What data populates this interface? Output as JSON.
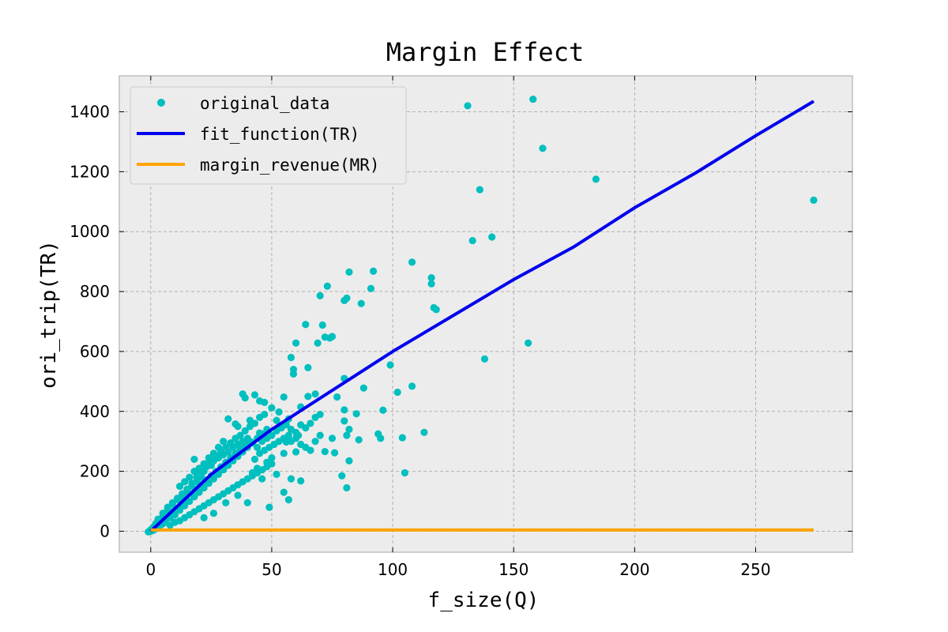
{
  "chart_data": {
    "type": "scatter",
    "title": "Margin Effect",
    "xlabel": "f_size(Q)",
    "ylabel": "ori_trip(TR)",
    "xlim": [
      -13,
      290
    ],
    "ylim": [
      -70,
      1520
    ],
    "xticks": [
      0,
      50,
      100,
      150,
      200,
      250
    ],
    "yticks": [
      0,
      200,
      400,
      600,
      800,
      1000,
      1200,
      1400
    ],
    "grid": true,
    "legend_position": "top-left",
    "colors": {
      "scatter": "#00bfbf",
      "fit": "#0000ee",
      "margin": "#ffa500",
      "plot_background": "#ececec",
      "frame": "#bfbfbf"
    },
    "series": [
      {
        "name": "original_data",
        "kind": "scatter",
        "points": [
          [
            131,
            1420
          ],
          [
            158,
            1442
          ],
          [
            162,
            1278
          ],
          [
            136,
            1140
          ],
          [
            184,
            1175
          ],
          [
            274,
            1105
          ],
          [
            133,
            970
          ],
          [
            141,
            982
          ],
          [
            108,
            898
          ],
          [
            116,
            846
          ],
          [
            116,
            826
          ],
          [
            117,
            746
          ],
          [
            118,
            740
          ],
          [
            156,
            628
          ],
          [
            138,
            575
          ],
          [
            92,
            868
          ],
          [
            91,
            810
          ],
          [
            82,
            865
          ],
          [
            80,
            770
          ],
          [
            81,
            778
          ],
          [
            87,
            760
          ],
          [
            73,
            818
          ],
          [
            70,
            786
          ],
          [
            74,
            645
          ],
          [
            75,
            650
          ],
          [
            72,
            648
          ],
          [
            71,
            688
          ],
          [
            64,
            690
          ],
          [
            69,
            628
          ],
          [
            60,
            628
          ],
          [
            65,
            546
          ],
          [
            58,
            580
          ],
          [
            59,
            540
          ],
          [
            59,
            525
          ],
          [
            99,
            555
          ],
          [
            80,
            510
          ],
          [
            77,
            448
          ],
          [
            88,
            478
          ],
          [
            96,
            404
          ],
          [
            102,
            464
          ],
          [
            108,
            484
          ],
          [
            94,
            325
          ],
          [
            95,
            310
          ],
          [
            104,
            312
          ],
          [
            113,
            330
          ],
          [
            105,
            195
          ],
          [
            85,
            392
          ],
          [
            82,
            340
          ],
          [
            81,
            320
          ],
          [
            86,
            305
          ],
          [
            76,
            262
          ],
          [
            72,
            266
          ],
          [
            75,
            310
          ],
          [
            79,
            185
          ],
          [
            81,
            145
          ],
          [
            82,
            235
          ],
          [
            80,
            368
          ],
          [
            80,
            405
          ],
          [
            65,
            450
          ],
          [
            68,
            458
          ],
          [
            62,
            415
          ],
          [
            55,
            448
          ],
          [
            53,
            398
          ],
          [
            50,
            412
          ],
          [
            45,
            435
          ],
          [
            43,
            455
          ],
          [
            47,
            430
          ],
          [
            38,
            458
          ],
          [
            39,
            445
          ],
          [
            32,
            375
          ],
          [
            35,
            358
          ],
          [
            41,
            370
          ],
          [
            36,
            350
          ],
          [
            45,
            328
          ],
          [
            52,
            370
          ],
          [
            57,
            375
          ],
          [
            58,
            340
          ],
          [
            56,
            298
          ],
          [
            61,
            320
          ],
          [
            60,
            265
          ],
          [
            55,
            260
          ],
          [
            50,
            245
          ],
          [
            48,
            230
          ],
          [
            44,
            210
          ],
          [
            42,
            195
          ],
          [
            46,
            175
          ],
          [
            52,
            190
          ],
          [
            58,
            175
          ],
          [
            62,
            168
          ],
          [
            55,
            130
          ],
          [
            57,
            105
          ],
          [
            49,
            80
          ],
          [
            40,
            95
          ],
          [
            36,
            120
          ],
          [
            31,
            95
          ],
          [
            26,
            60
          ],
          [
            22,
            45
          ],
          [
            18,
            240
          ],
          [
            20,
            210
          ],
          [
            25,
            220
          ],
          [
            28,
            280
          ],
          [
            30,
            300
          ],
          [
            26,
            260
          ],
          [
            24,
            230
          ],
          [
            22,
            200
          ],
          [
            21,
            180
          ],
          [
            19,
            165
          ],
          [
            17,
            150
          ],
          [
            15,
            140
          ],
          [
            13,
            125
          ],
          [
            11,
            110
          ],
          [
            9,
            95
          ],
          [
            7,
            80
          ],
          [
            5,
            60
          ],
          [
            3,
            40
          ],
          [
            2,
            25
          ],
          [
            1,
            12
          ],
          [
            0,
            5
          ],
          [
            0,
            0
          ],
          [
            -1,
            -2
          ],
          [
            1,
            3
          ],
          [
            2,
            8
          ],
          [
            4,
            20
          ],
          [
            6,
            30
          ],
          [
            8,
            45
          ],
          [
            10,
            55
          ],
          [
            12,
            70
          ],
          [
            14,
            85
          ],
          [
            16,
            100
          ],
          [
            18,
            115
          ],
          [
            20,
            130
          ],
          [
            22,
            145
          ],
          [
            24,
            160
          ],
          [
            26,
            175
          ],
          [
            28,
            190
          ],
          [
            30,
            205
          ],
          [
            32,
            220
          ],
          [
            34,
            235
          ],
          [
            36,
            250
          ],
          [
            38,
            265
          ],
          [
            40,
            280
          ],
          [
            42,
            295
          ],
          [
            44,
            310
          ],
          [
            46,
            325
          ],
          [
            48,
            340
          ],
          [
            8,
            20
          ],
          [
            10,
            30
          ],
          [
            12,
            35
          ],
          [
            14,
            45
          ],
          [
            16,
            55
          ],
          [
            18,
            65
          ],
          [
            20,
            75
          ],
          [
            22,
            85
          ],
          [
            24,
            95
          ],
          [
            26,
            105
          ],
          [
            28,
            115
          ],
          [
            30,
            125
          ],
          [
            32,
            135
          ],
          [
            34,
            145
          ],
          [
            36,
            155
          ],
          [
            38,
            165
          ],
          [
            40,
            175
          ],
          [
            42,
            185
          ],
          [
            44,
            195
          ],
          [
            46,
            205
          ],
          [
            48,
            215
          ],
          [
            50,
            225
          ],
          [
            5,
            50
          ],
          [
            7,
            70
          ],
          [
            9,
            90
          ],
          [
            11,
            105
          ],
          [
            13,
            115
          ],
          [
            15,
            130
          ],
          [
            17,
            160
          ],
          [
            19,
            180
          ],
          [
            21,
            200
          ],
          [
            23,
            215
          ],
          [
            25,
            235
          ],
          [
            27,
            250
          ],
          [
            29,
            265
          ],
          [
            31,
            280
          ],
          [
            33,
            295
          ],
          [
            35,
            310
          ],
          [
            37,
            320
          ],
          [
            39,
            335
          ],
          [
            41,
            350
          ],
          [
            43,
            360
          ],
          [
            45,
            380
          ],
          [
            47,
            390
          ],
          [
            12,
            150
          ],
          [
            14,
            165
          ],
          [
            16,
            180
          ],
          [
            18,
            200
          ],
          [
            20,
            190
          ],
          [
            22,
            225
          ],
          [
            24,
            245
          ],
          [
            26,
            235
          ],
          [
            28,
            245
          ],
          [
            30,
            255
          ],
          [
            32,
            265
          ],
          [
            34,
            280
          ],
          [
            36,
            290
          ],
          [
            38,
            300
          ],
          [
            40,
            310
          ],
          [
            3,
            15
          ],
          [
            5,
            25
          ],
          [
            6,
            40
          ],
          [
            8,
            55
          ],
          [
            9,
            65
          ],
          [
            11,
            75
          ],
          [
            13,
            90
          ],
          [
            15,
            105
          ],
          [
            17,
            125
          ],
          [
            19,
            140
          ],
          [
            21,
            155
          ],
          [
            23,
            170
          ],
          [
            25,
            185
          ],
          [
            27,
            200
          ],
          [
            29,
            215
          ],
          [
            31,
            230
          ],
          [
            33,
            245
          ],
          [
            35,
            260
          ],
          [
            37,
            275
          ],
          [
            39,
            290
          ],
          [
            41,
            300
          ],
          [
            43,
            240
          ],
          [
            45,
            260
          ],
          [
            47,
            270
          ],
          [
            49,
            280
          ],
          [
            51,
            290
          ],
          [
            53,
            300
          ],
          [
            55,
            310
          ],
          [
            57,
            320
          ],
          [
            60,
            330
          ],
          [
            62,
            355
          ],
          [
            64,
            345
          ],
          [
            66,
            360
          ],
          [
            68,
            380
          ],
          [
            70,
            390
          ],
          [
            44,
            280
          ],
          [
            46,
            300
          ],
          [
            48,
            310
          ],
          [
            50,
            320
          ],
          [
            52,
            335
          ],
          [
            54,
            345
          ],
          [
            56,
            355
          ],
          [
            58,
            300
          ],
          [
            60,
            310
          ],
          [
            62,
            290
          ],
          [
            64,
            280
          ],
          [
            66,
            270
          ],
          [
            68,
            300
          ],
          [
            70,
            320
          ]
        ]
      },
      {
        "name": "fit_function(TR)",
        "kind": "line",
        "points": [
          [
            0,
            0
          ],
          [
            25,
            190
          ],
          [
            50,
            340
          ],
          [
            75,
            470
          ],
          [
            100,
            600
          ],
          [
            125,
            720
          ],
          [
            150,
            840
          ],
          [
            175,
            950
          ],
          [
            200,
            1080
          ],
          [
            225,
            1195
          ],
          [
            250,
            1320
          ],
          [
            274,
            1435
          ]
        ]
      },
      {
        "name": "margin_revenue(MR)",
        "kind": "line",
        "points": [
          [
            0,
            4
          ],
          [
            274,
            4
          ]
        ]
      }
    ]
  }
}
